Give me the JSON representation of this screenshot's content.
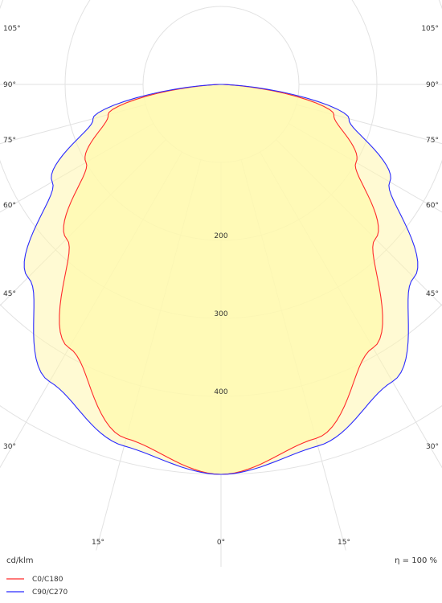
{
  "chart_data": {
    "type": "polar",
    "title": "",
    "unit_label": "cd/klm",
    "efficiency_label": "η = 100 %",
    "radial_ticks": [
      200,
      300,
      400
    ],
    "angle_labels": {
      "left": [
        "105°",
        "90°",
        "75°",
        "60°",
        "45°",
        "30°"
      ],
      "right": [
        "105°",
        "90°",
        "75°",
        "60°",
        "45°",
        "30°"
      ],
      "bottom": [
        "15°",
        "0°",
        "15°"
      ]
    },
    "series": [
      {
        "name": "C0/C180",
        "color": "#ff2a2a",
        "values_cd_per_klm": [
          {
            "gamma": 0,
            "value": 500
          },
          {
            "gamma": 15,
            "value": 470
          },
          {
            "gamma": 30,
            "value": 390
          },
          {
            "gamma": 45,
            "value": 280
          },
          {
            "gamma": 60,
            "value": 200
          },
          {
            "gamma": 75,
            "value": 150
          },
          {
            "gamma": 90,
            "value": 0
          }
        ]
      },
      {
        "name": "C90/C270",
        "color": "#2a2aff",
        "values_cd_per_klm": [
          {
            "gamma": 0,
            "value": 500
          },
          {
            "gamma": 15,
            "value": 480
          },
          {
            "gamma": 30,
            "value": 440
          },
          {
            "gamma": 45,
            "value": 350
          },
          {
            "gamma": 60,
            "value": 250
          },
          {
            "gamma": 75,
            "value": 170
          },
          {
            "gamma": 90,
            "value": 0
          }
        ]
      }
    ],
    "grid": true,
    "legend_position": "bottom-left"
  }
}
